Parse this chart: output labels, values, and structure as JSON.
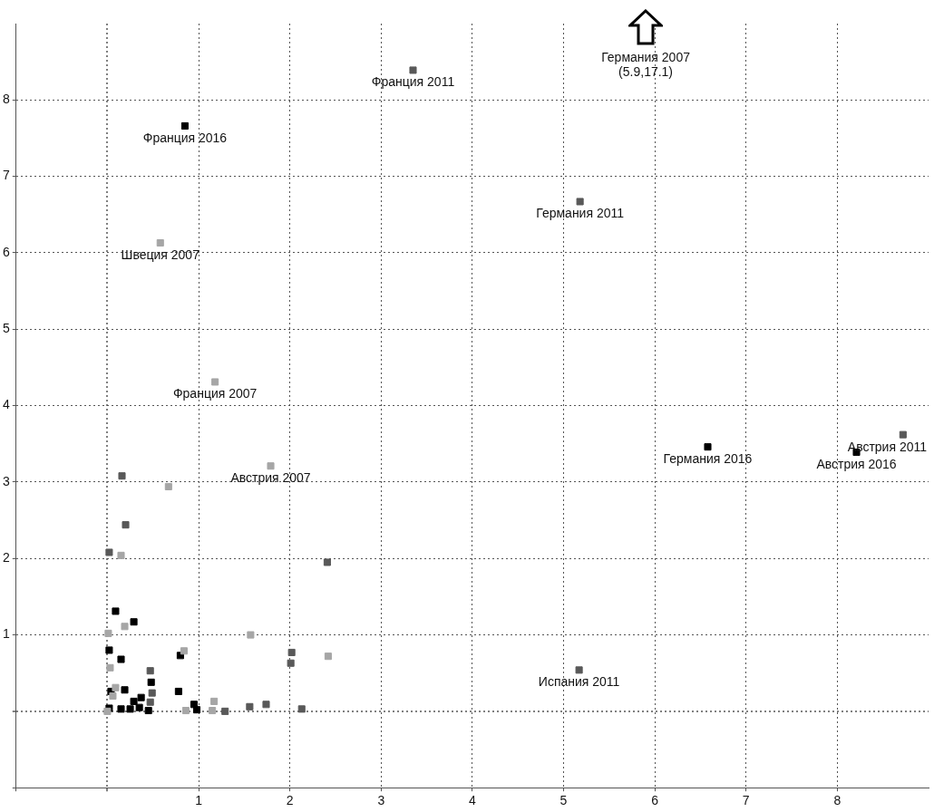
{
  "chart_data": {
    "type": "scatter",
    "xlim": [
      -1,
      9
    ],
    "ylim": [
      -1,
      9
    ],
    "xticks": [
      {
        "value": -1,
        "label": null
      },
      {
        "value": 0,
        "label": null
      },
      1,
      2,
      3,
      4,
      5,
      6,
      7,
      8
    ],
    "yticks": [
      {
        "value": -1,
        "label": null
      },
      {
        "value": 0,
        "label": null
      },
      1,
      2,
      3,
      4,
      5,
      6,
      7,
      8
    ],
    "grid": true,
    "marker": "square",
    "legend": false,
    "series": [
      {
        "color": "#a6a6a6",
        "x": [
          0.58,
          1.18,
          1.79,
          0.67,
          0.15,
          0.19,
          0.01,
          1.57,
          0.84,
          0.03,
          2.42,
          0.09,
          0.06,
          0.0,
          1.17,
          0.86,
          1.15
        ],
        "values": [
          6.13,
          4.31,
          3.21,
          2.94,
          2.04,
          1.11,
          1.02,
          1.0,
          0.79,
          0.57,
          0.72,
          0.31,
          0.2,
          0.0,
          0.13,
          0.01,
          0.01
        ]
      },
      {
        "color": "#595959",
        "x": [
          3.35,
          5.18,
          8.72,
          5.17,
          0.16,
          0.2,
          0.02,
          2.41,
          2.02,
          2.01,
          0.47,
          0.49,
          0.47,
          1.29,
          1.56,
          1.74,
          2.13
        ],
        "values": [
          8.39,
          6.67,
          3.62,
          0.54,
          3.08,
          2.44,
          2.08,
          1.95,
          0.77,
          0.63,
          0.53,
          0.24,
          0.12,
          0.0,
          0.06,
          0.09,
          0.03
        ]
      },
      {
        "color": "#000000",
        "x": [
          0.85,
          6.58,
          8.21,
          0.09,
          0.29,
          0.8,
          0.02,
          0.15,
          0.48,
          0.04,
          0.19,
          0.78,
          0.37,
          0.29,
          0.02,
          0.15,
          0.25,
          0.35,
          0.45,
          0.95,
          0.98
        ],
        "values": [
          7.66,
          3.46,
          3.39,
          1.31,
          1.17,
          0.73,
          0.8,
          0.68,
          0.38,
          0.26,
          0.28,
          0.26,
          0.18,
          0.13,
          0.04,
          0.03,
          0.03,
          0.05,
          0.01,
          0.09,
          0.02
        ]
      }
    ],
    "annotations": [
      {
        "text": "Франция 2011",
        "x": 3.35,
        "y": 8.39
      },
      {
        "text": "Франция 2016",
        "x": 0.85,
        "y": 7.66
      },
      {
        "text": "Швеция 2007",
        "x": 0.58,
        "y": 6.13
      },
      {
        "text": "Франция 2007",
        "x": 1.18,
        "y": 4.31
      },
      {
        "text": "Австрия 2007",
        "x": 1.79,
        "y": 3.21
      },
      {
        "text": "Германия 2011",
        "x": 5.18,
        "y": 6.67
      },
      {
        "text": "Германия 2016",
        "x": 6.58,
        "y": 3.46
      },
      {
        "text": "Австрия 2016",
        "x": 8.21,
        "y": 3.39
      },
      {
        "text": "Австрия 2011",
        "x": 8.72,
        "y": 3.62
      },
      {
        "text": "Испания 2011",
        "x": 5.17,
        "y": 0.54
      },
      "Германия 2007\n(5.9,17.1)"
    ]
  }
}
